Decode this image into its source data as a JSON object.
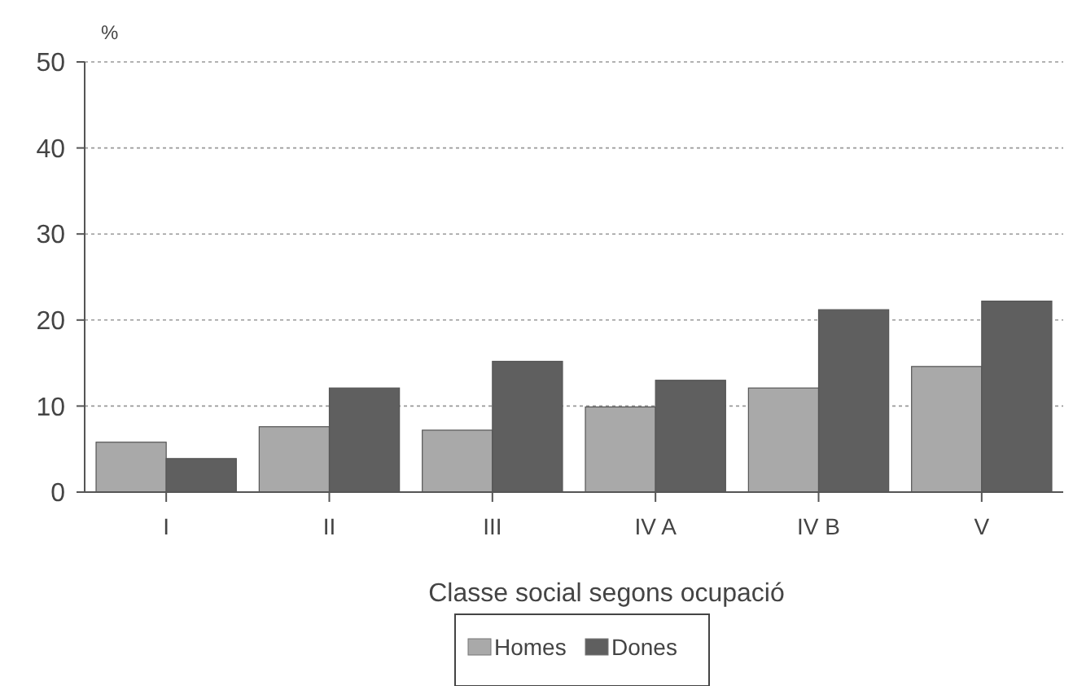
{
  "chart_data": {
    "type": "bar",
    "ylabel": "%",
    "xlabel": "Classe social segons ocupació",
    "categories": [
      "I",
      "II",
      "III",
      "IV A",
      "IV B",
      "V"
    ],
    "series": [
      {
        "name": "Homes",
        "color": "#a9a9a9",
        "values": [
          5.8,
          7.6,
          7.2,
          9.9,
          12.1,
          14.6
        ]
      },
      {
        "name": "Dones",
        "color": "#5f5f5f",
        "values": [
          3.9,
          12.1,
          15.2,
          13.0,
          21.2,
          22.2
        ]
      }
    ],
    "ylim": [
      0,
      50
    ],
    "yticks": [
      0,
      10,
      20,
      30,
      40,
      50
    ],
    "grid": "y",
    "legend": "bottom"
  }
}
